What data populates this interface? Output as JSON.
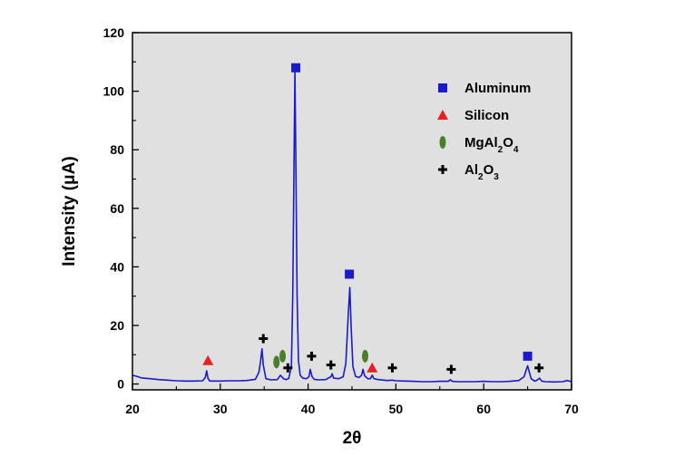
{
  "chart_data": {
    "type": "line",
    "xlabel": "2θ",
    "ylabel": "Intensity (μA)",
    "xlim": [
      20,
      70
    ],
    "ylim": [
      -2,
      120
    ],
    "xticks": [
      20,
      30,
      40,
      50,
      60,
      70
    ],
    "yticks": [
      0,
      20,
      40,
      60,
      80,
      100,
      120
    ],
    "grid": false,
    "background_color": "#e0e0e0",
    "line_color": "#1a1acc",
    "legend_position": "top-right",
    "series": [
      {
        "x": [
          20,
          20.5,
          21,
          22,
          23,
          24,
          25,
          26,
          27,
          28,
          28.3,
          28.45,
          28.6,
          28.8,
          29.5,
          30,
          31,
          32,
          33,
          34,
          34.4,
          34.6,
          34.75,
          34.9,
          35.2,
          35.8,
          36.5,
          36.85,
          37.2,
          37.5,
          37.8,
          38.1,
          38.25,
          38.4,
          38.5,
          38.6,
          38.75,
          38.9,
          39.1,
          39.4,
          39.8,
          40.1,
          40.25,
          40.45,
          40.7,
          41.2,
          42,
          42.6,
          42.75,
          42.9,
          43.5,
          44,
          44.3,
          44.6,
          44.75,
          44.9,
          45.1,
          45.4,
          45.8,
          46.1,
          46.25,
          46.45,
          46.8,
          47.1,
          47.3,
          47.5,
          48,
          49,
          49.6,
          50,
          51,
          52,
          53,
          54,
          55,
          56,
          56.2,
          56.4,
          57,
          58,
          59,
          60,
          61,
          62,
          63,
          64,
          64.6,
          64.8,
          65,
          65.2,
          65.4,
          65.8,
          66,
          66.35,
          66.6,
          67,
          68,
          69,
          69.5,
          70
        ],
        "values": [
          3,
          2.6,
          2.1,
          1.8,
          1.5,
          1.3,
          1.1,
          1.0,
          1.0,
          1.1,
          2.2,
          4.5,
          2.0,
          1.0,
          1.0,
          1.0,
          1.1,
          1.1,
          1.2,
          1.6,
          4.0,
          8.0,
          12.0,
          6.5,
          1.8,
          1.4,
          1.5,
          3.0,
          1.8,
          1.5,
          1.9,
          6.0,
          30,
          75,
          107,
          80,
          30,
          8,
          3.0,
          2.0,
          1.8,
          2.5,
          5.0,
          2.5,
          1.6,
          1.4,
          1.5,
          2.5,
          3.5,
          2.0,
          1.8,
          2.5,
          7.0,
          25,
          33,
          20,
          6.0,
          2.6,
          2.2,
          3.0,
          5.0,
          2.8,
          1.8,
          1.8,
          3.0,
          1.8,
          1.5,
          1.2,
          1.3,
          1.1,
          1.0,
          0.9,
          0.8,
          0.8,
          0.9,
          0.9,
          1.5,
          0.9,
          0.8,
          0.8,
          0.8,
          0.9,
          0.8,
          0.8,
          0.9,
          1.2,
          2.5,
          4.5,
          6.2,
          4.0,
          1.8,
          1.0,
          1.2,
          2.0,
          1.0,
          0.8,
          0.7,
          0.8,
          1.2,
          0.8
        ]
      }
    ],
    "markers": [
      {
        "symbol": "square",
        "color": "#1a1acc",
        "points": [
          [
            38.6,
            108
          ],
          [
            44.7,
            37.5
          ],
          [
            65.0,
            9.5
          ]
        ]
      },
      {
        "symbol": "triangle",
        "color": "#e82020",
        "points": [
          [
            28.6,
            8
          ],
          [
            47.3,
            5.5
          ]
        ]
      },
      {
        "symbol": "ellipse",
        "color": "#4a7d2c",
        "points": [
          [
            36.4,
            7.5
          ],
          [
            37.1,
            9.5
          ],
          [
            46.5,
            9.5
          ]
        ]
      },
      {
        "symbol": "cross",
        "color": "#000000",
        "points": [
          [
            34.9,
            15.5
          ],
          [
            37.7,
            5.5
          ],
          [
            40.4,
            9.5
          ],
          [
            42.6,
            6.5
          ],
          [
            49.6,
            5.5
          ],
          [
            56.3,
            5.0
          ],
          [
            66.3,
            5.5
          ]
        ]
      }
    ],
    "legend": [
      {
        "symbol": "square",
        "color": "#1a1acc",
        "label": "Aluminum"
      },
      {
        "symbol": "triangle",
        "color": "#e82020",
        "label": "Silicon"
      },
      {
        "symbol": "ellipse",
        "color": "#4a7d2c",
        "label_parts": [
          "MgAl",
          "2",
          "O",
          "4"
        ]
      },
      {
        "symbol": "cross",
        "color": "#000000",
        "label_parts": [
          "Al",
          "2",
          "O",
          "3"
        ]
      }
    ]
  }
}
